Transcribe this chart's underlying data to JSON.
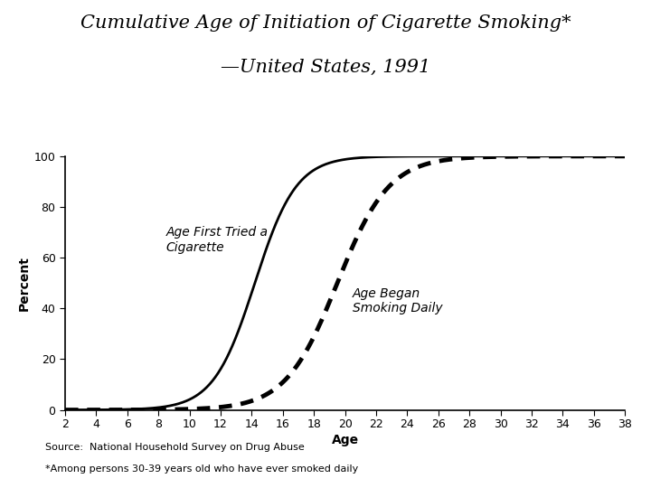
{
  "title_line1": "Cumulative Age of Initiation of Cigarette Smoking*",
  "title_line2": "—United States, 1991",
  "xlabel": "Age",
  "ylabel": "Percent",
  "xlim": [
    2,
    38
  ],
  "ylim": [
    0,
    100
  ],
  "xticks": [
    2,
    4,
    6,
    8,
    10,
    12,
    14,
    16,
    18,
    20,
    22,
    24,
    26,
    28,
    30,
    32,
    34,
    36,
    38
  ],
  "yticks": [
    0,
    20,
    40,
    60,
    80,
    100
  ],
  "label_tried": "Age First Tried a\nCigarette",
  "label_daily": "Age Began\nSmoking Daily",
  "source_line1": "Source:  National Household Survey on Drug Abuse",
  "source_line2": "*Among persons 30-39 years old who have ever smoked daily",
  "curve_tried_midpoint": 14.2,
  "curve_tried_steepness": 0.75,
  "curve_daily_midpoint": 19.5,
  "curve_daily_steepness": 0.6,
  "bg_color": "#ffffff",
  "line_color": "#000000",
  "title_fontsize": 15,
  "axis_fontsize": 10,
  "tick_fontsize": 9,
  "annotation_fontsize": 10,
  "source_fontsize": 8
}
